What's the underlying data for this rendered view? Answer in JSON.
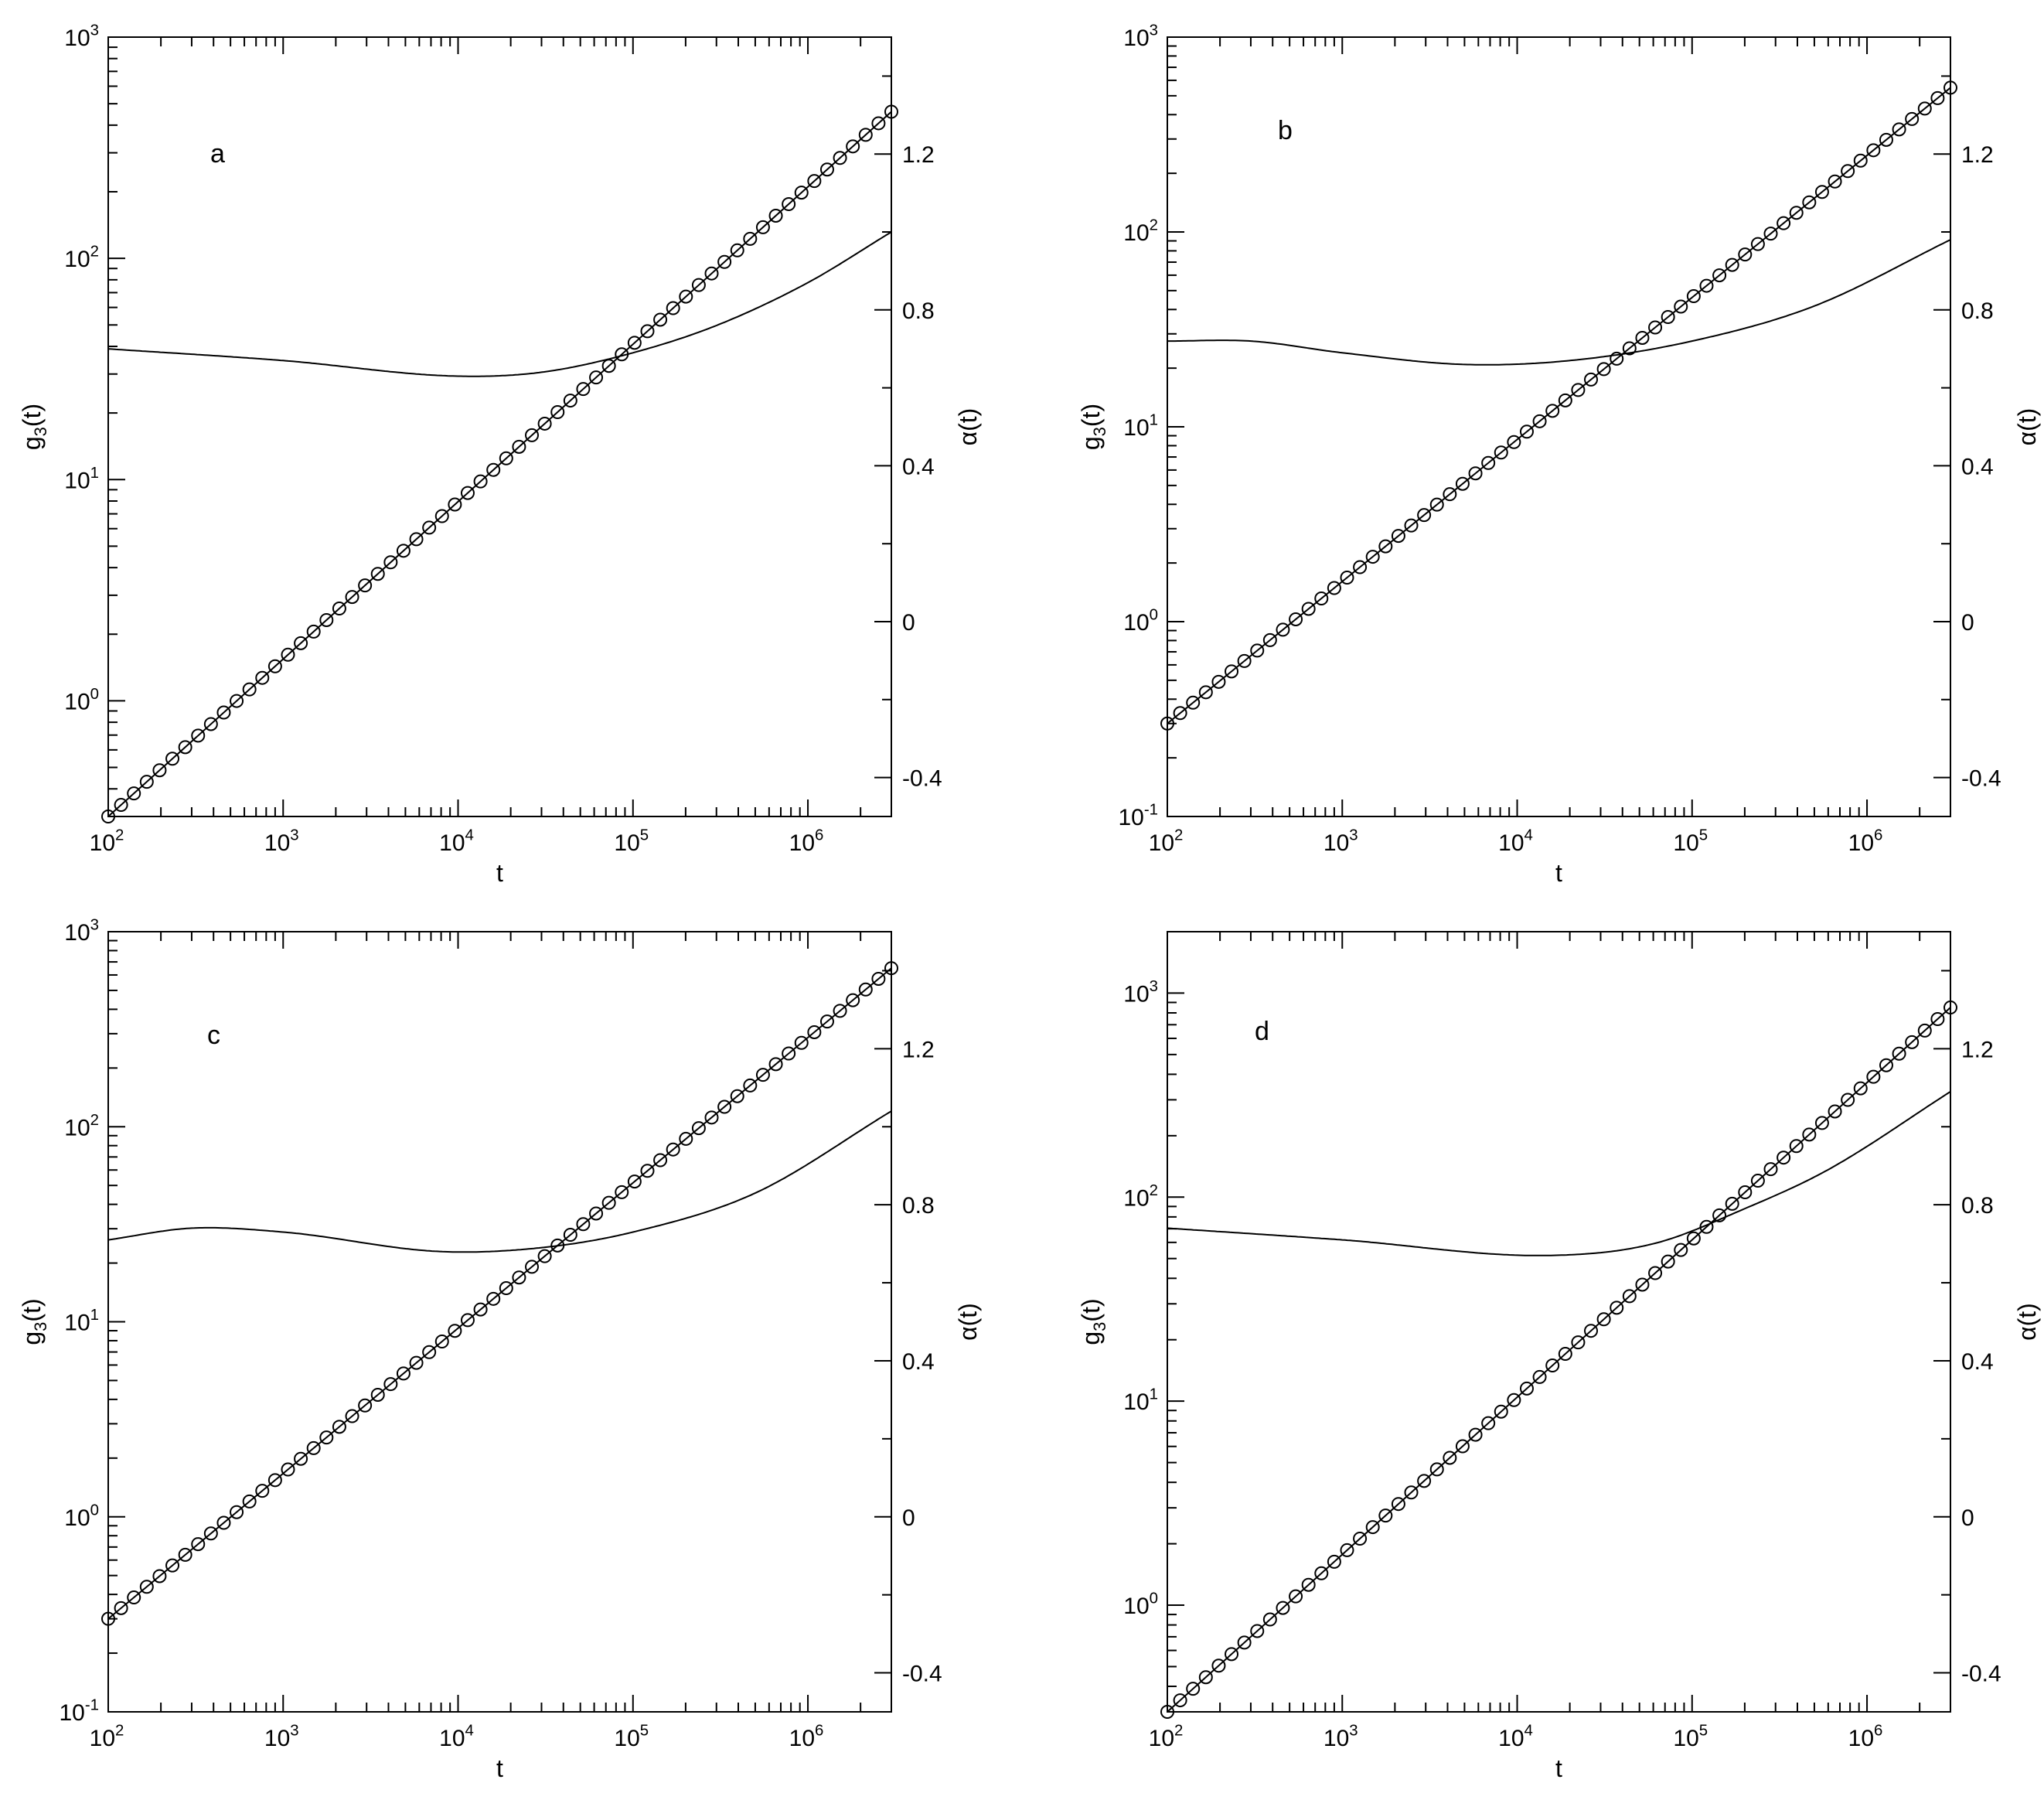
{
  "chart_data": [
    {
      "type": "line",
      "panel_label": "a",
      "xlabel": "t",
      "ylabel": "g3(t)",
      "y2label": "α(t)",
      "x_scale": "log",
      "y_scale": "log",
      "xlim": [
        100,
        3000000
      ],
      "ylim": [
        0.3,
        1000
      ],
      "y2lim": [
        -0.5,
        1.5
      ],
      "x_ticks": [
        "10^2",
        "10^3",
        "10^4",
        "10^5",
        "10^6"
      ],
      "y_ticks": [
        "10^0",
        "10^1",
        "10^2",
        "10^3"
      ],
      "y2_ticks": [
        "-0.4",
        "0",
        "0.4",
        "0.8",
        "1.2"
      ],
      "series": [
        {
          "style": "line+circles",
          "axis": "left",
          "x": [
            100,
            3000000
          ],
          "y": [
            0.3,
            460
          ]
        },
        {
          "style": "line",
          "axis": "right",
          "x": [
            100,
            1000,
            10000,
            30000,
            100000,
            300000,
            1000000,
            3000000
          ],
          "y": [
            0.7,
            0.67,
            0.63,
            0.64,
            0.69,
            0.76,
            0.87,
            1.0
          ]
        }
      ]
    },
    {
      "type": "line",
      "panel_label": "b",
      "xlabel": "t",
      "ylabel": "g3(t)",
      "y2label": "α(t)",
      "x_scale": "log",
      "y_scale": "log",
      "xlim": [
        100,
        3000000
      ],
      "ylim": [
        0.1,
        1000
      ],
      "y2lim": [
        -0.5,
        1.5
      ],
      "x_ticks": [
        "10^2",
        "10^3",
        "10^4",
        "10^5",
        "10^6"
      ],
      "y_ticks": [
        "10^-1",
        "10^0",
        "10^1",
        "10^2",
        "10^3"
      ],
      "y2_ticks": [
        "-0.4",
        "0",
        "0.4",
        "0.8",
        "1.2"
      ],
      "series": [
        {
          "style": "line+circles",
          "axis": "left",
          "x": [
            100,
            3000000
          ],
          "y": [
            0.3,
            550
          ]
        },
        {
          "style": "line",
          "axis": "right",
          "x": [
            100,
            300,
            1000,
            5000,
            20000,
            100000,
            500000,
            3000000
          ],
          "y": [
            0.72,
            0.72,
            0.69,
            0.66,
            0.67,
            0.72,
            0.81,
            0.98
          ]
        }
      ]
    },
    {
      "type": "line",
      "panel_label": "c",
      "xlabel": "t",
      "ylabel": "g3(t)",
      "y2label": "α(t)",
      "x_scale": "log",
      "y_scale": "log",
      "xlim": [
        100,
        3000000
      ],
      "ylim": [
        0.1,
        1000
      ],
      "y2lim": [
        -0.5,
        1.5
      ],
      "x_ticks": [
        "10^2",
        "10^3",
        "10^4",
        "10^5",
        "10^6"
      ],
      "y_ticks": [
        "10^-1",
        "10^0",
        "10^1",
        "10^2",
        "10^3"
      ],
      "y2_ticks": [
        "-0.4",
        "0",
        "0.4",
        "0.8",
        "1.2"
      ],
      "series": [
        {
          "style": "line+circles",
          "axis": "left",
          "x": [
            100,
            3000000
          ],
          "y": [
            0.3,
            650
          ]
        },
        {
          "style": "line",
          "axis": "right",
          "x": [
            100,
            300,
            1000,
            8000,
            30000,
            100000,
            500000,
            3000000
          ],
          "y": [
            0.71,
            0.74,
            0.73,
            0.68,
            0.69,
            0.73,
            0.83,
            1.04
          ]
        }
      ]
    },
    {
      "type": "line",
      "panel_label": "d",
      "xlabel": "t",
      "ylabel": "g3(t)",
      "y2label": "α(t)",
      "x_scale": "log",
      "y_scale": "log",
      "xlim": [
        100,
        3000000
      ],
      "ylim": [
        0.3,
        2000
      ],
      "y2lim": [
        -0.5,
        1.5
      ],
      "x_ticks": [
        "10^2",
        "10^3",
        "10^4",
        "10^5",
        "10^6"
      ],
      "y_ticks": [
        "10^0",
        "10^1",
        "10^2",
        "10^3"
      ],
      "y2_ticks": [
        "-0.4",
        "0",
        "0.4",
        "0.8",
        "1.2"
      ],
      "series": [
        {
          "style": "line+circles",
          "axis": "left",
          "x": [
            100,
            3000000
          ],
          "y": [
            0.3,
            850
          ]
        },
        {
          "style": "line",
          "axis": "right",
          "x": [
            100,
            1000,
            15000,
            60000,
            200000,
            600000,
            3000000
          ],
          "y": [
            0.74,
            0.71,
            0.67,
            0.7,
            0.79,
            0.89,
            1.09
          ]
        }
      ]
    }
  ]
}
